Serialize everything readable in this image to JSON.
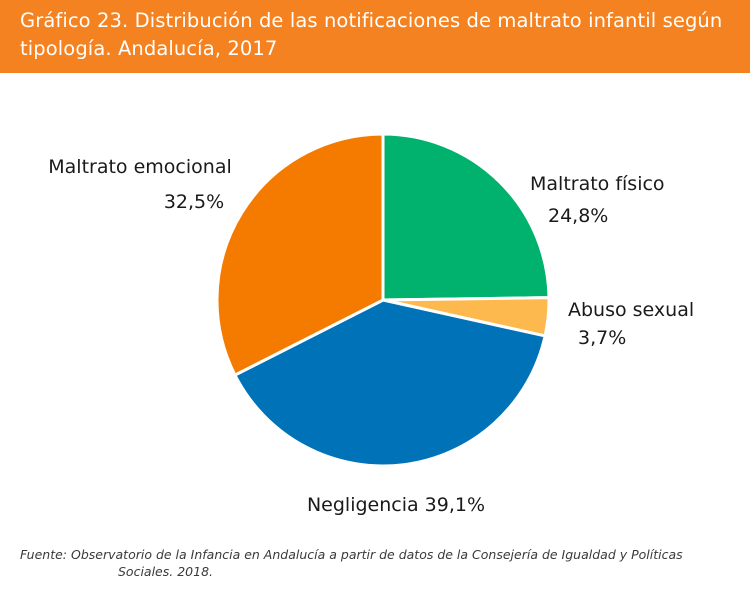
{
  "header": {
    "title": "Gráfico 23. Distribución de las notificaciones de maltrato infantil según tipología. Andalucía, 2017"
  },
  "chart_data": {
    "type": "pie",
    "title": "Gráfico 23. Distribución de las notificaciones de maltrato infantil según tipología. Andalucía, 2017",
    "start_angle_deg": 90,
    "direction": "clockwise",
    "slices": [
      {
        "label": "Maltrato físico",
        "value": 24.8,
        "value_label": "24,8%",
        "color": "#00b26e"
      },
      {
        "label": "Abuso sexual",
        "value": 3.7,
        "value_label": "3,7%",
        "color": "#fdb94e"
      },
      {
        "label": "Negligencia",
        "value": 39.1,
        "value_label": "39,1%",
        "color": "#0072b8"
      },
      {
        "label": "Maltrato emocional",
        "value": 32.5,
        "value_label": "32,5%",
        "color": "#f57a00"
      }
    ]
  },
  "footer": {
    "source_line1": "Fuente: Observatorio de la Infancia en Andalucía a partir de datos de la Consejería de Igualdad y Políticas",
    "source_line2": "Sociales. 2018."
  }
}
